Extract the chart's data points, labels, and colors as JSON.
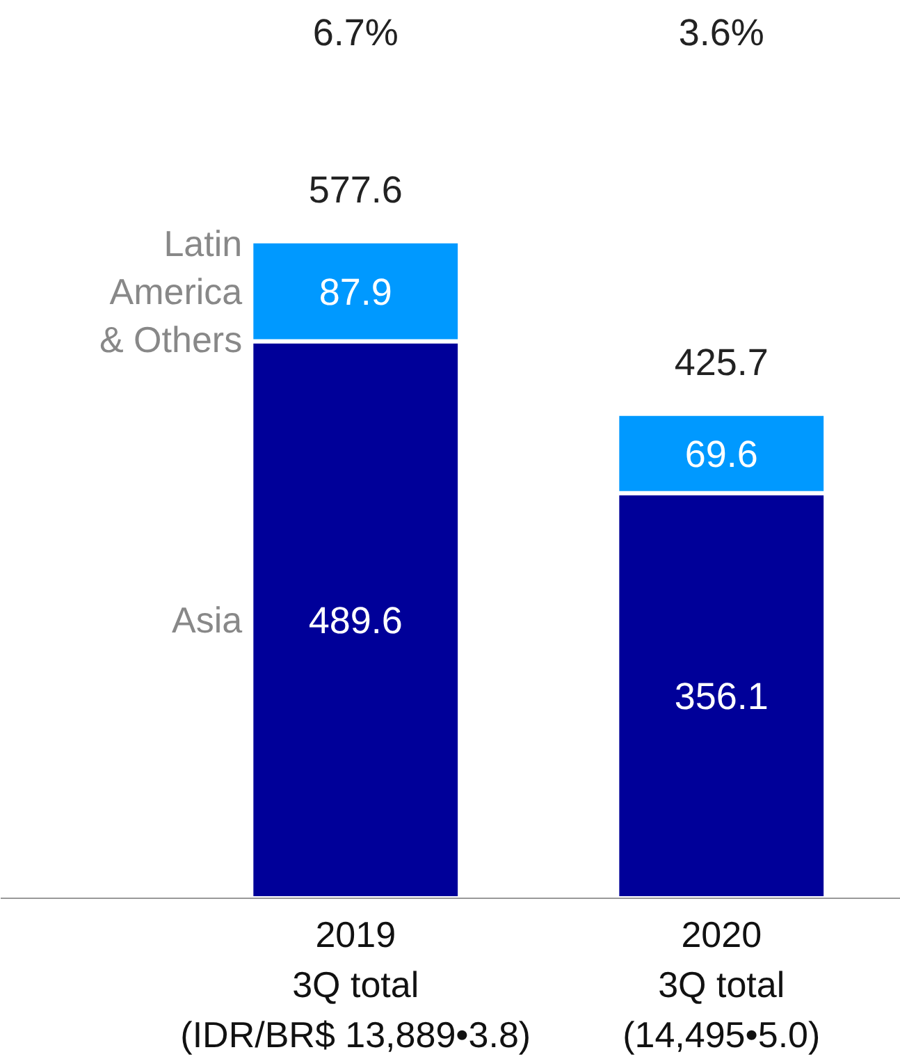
{
  "chart_data": {
    "type": "bar",
    "stacked": true,
    "data_labels": true,
    "legend": false,
    "grid": false,
    "categories": [
      "2019\n3Q total\n(IDR/BR$ 13,889•3.8)",
      "2020\n3Q total\n(14,495•5.0)"
    ],
    "series": [
      {
        "name": "Asia",
        "color": "#000099",
        "values": [
          489.6,
          356.1
        ]
      },
      {
        "name": "Latin America & Others",
        "color": "#0099ff",
        "values": [
          87.9,
          69.6
        ]
      }
    ],
    "totals": [
      "577.6",
      "425.7"
    ],
    "annotations": [
      "6.7%",
      "3.6%"
    ]
  }
}
